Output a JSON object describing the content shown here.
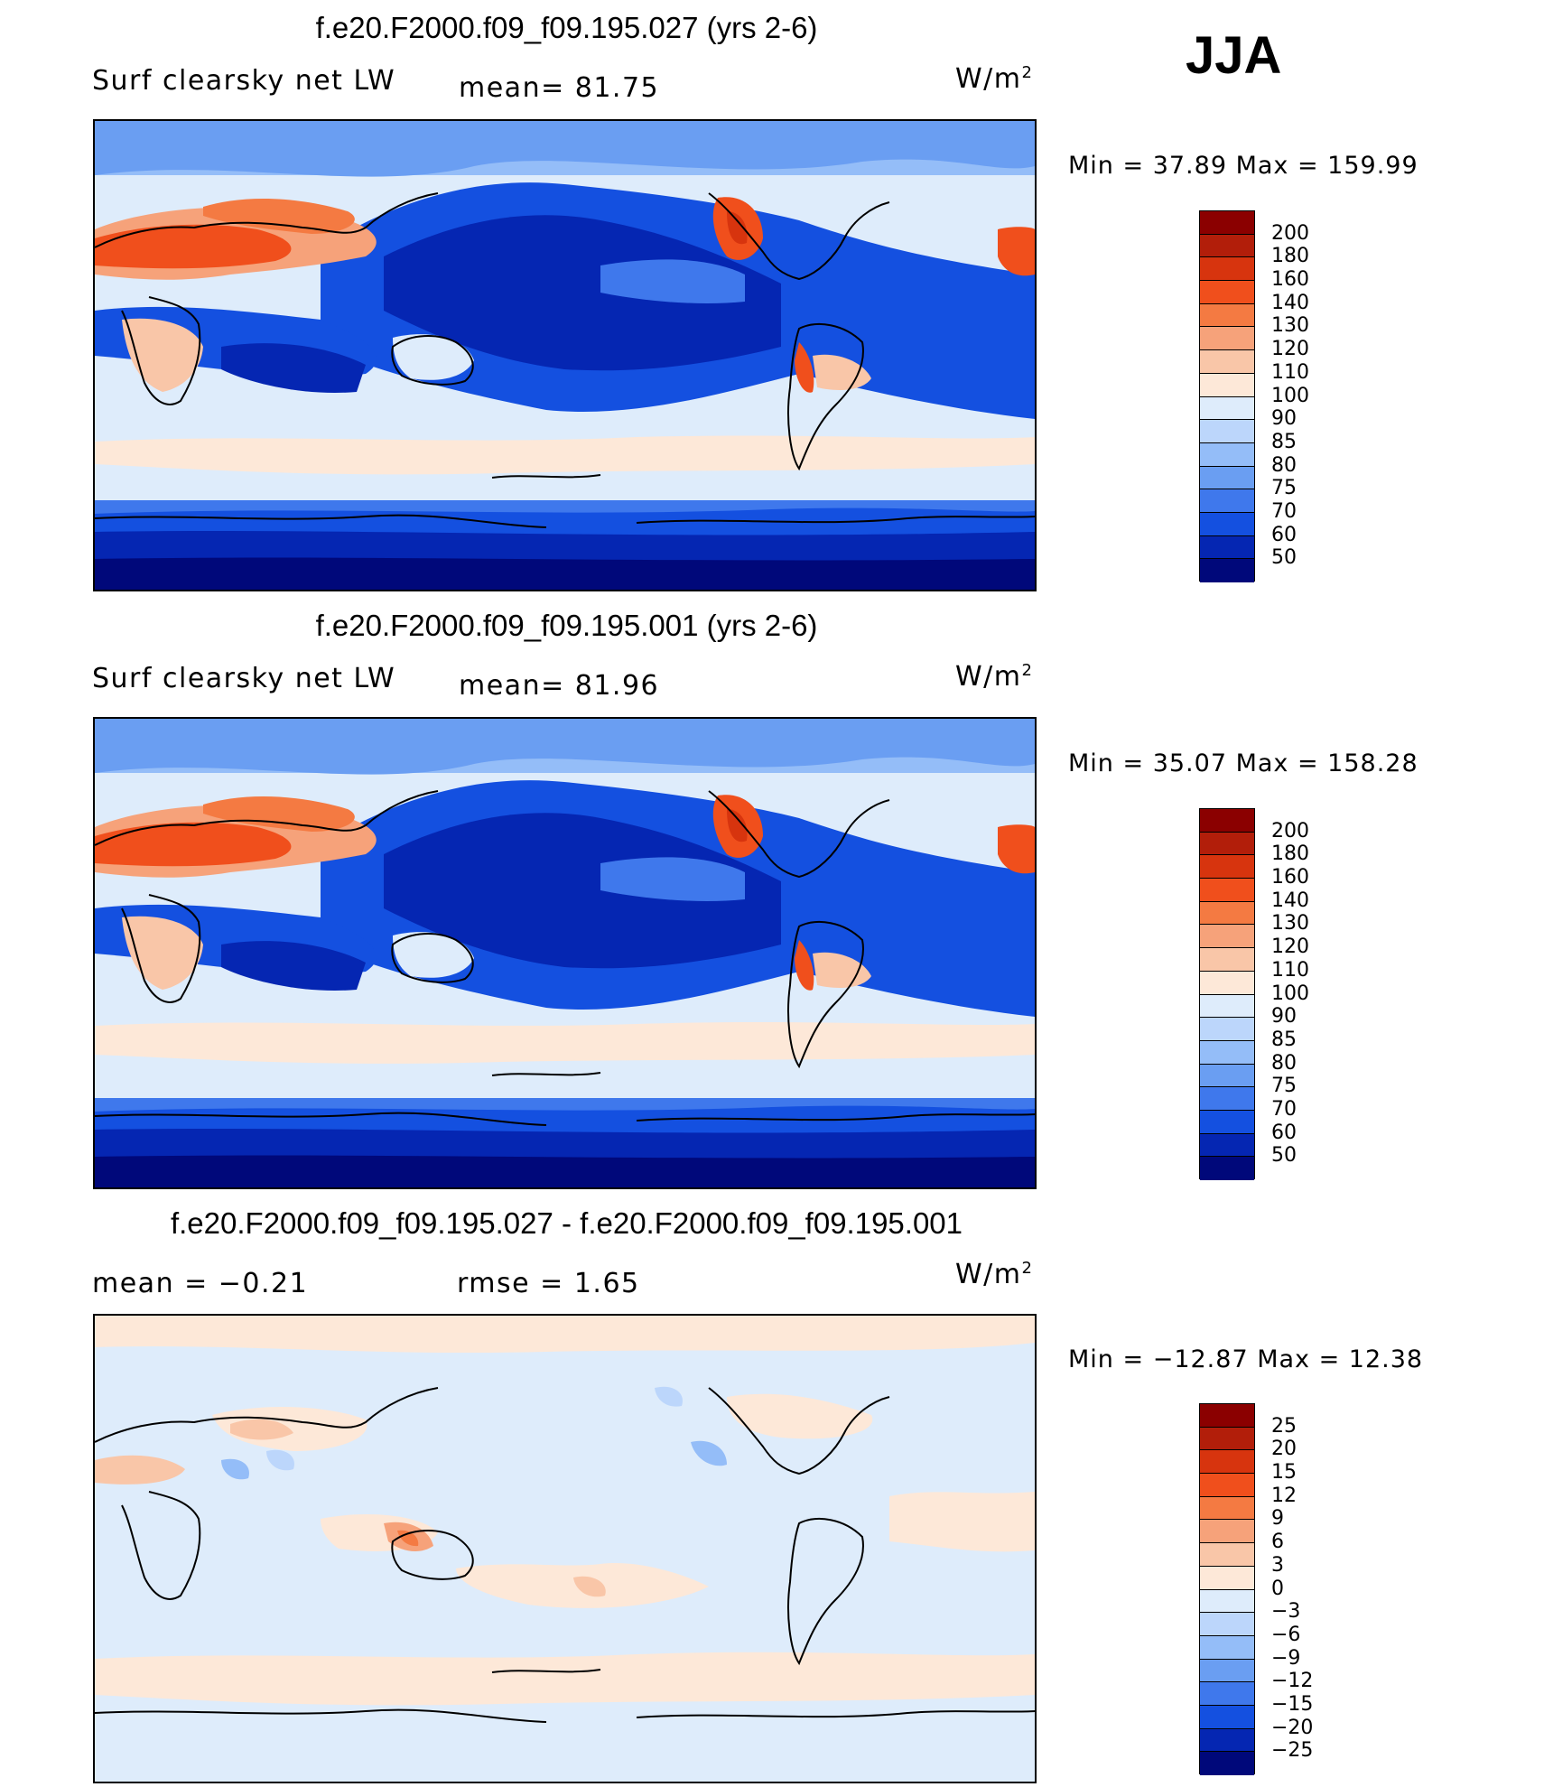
{
  "season": "JJA",
  "panels": [
    {
      "title": "f.e20.F2000.f09_f09.195.027 (yrs 2-6)",
      "left_text": "Surf  clearsky  net  LW",
      "center_text": "mean=   81.75",
      "units": "W/m",
      "units_sup": "2",
      "minmax": "Min  =    37.89  Max  =  159.99",
      "cbar_labels": [
        "200",
        "180",
        "160",
        "140",
        "130",
        "120",
        "110",
        "100",
        "90",
        "85",
        "80",
        "75",
        "70",
        "60",
        "50"
      ]
    },
    {
      "title": "f.e20.F2000.f09_f09.195.001 (yrs 2-6)",
      "left_text": "Surf  clearsky  net  LW",
      "center_text": "mean=   81.96",
      "units": "W/m",
      "units_sup": "2",
      "minmax": "Min  =    35.07  Max  =  158.28",
      "cbar_labels": [
        "200",
        "180",
        "160",
        "140",
        "130",
        "120",
        "110",
        "100",
        "90",
        "85",
        "80",
        "75",
        "70",
        "60",
        "50"
      ]
    },
    {
      "title": "f.e20.F2000.f09_f09.195.027 - f.e20.F2000.f09_f09.195.001",
      "left_text": "mean  =    −0.21",
      "center_text": "rmse  =     1.65",
      "units": "W/m",
      "units_sup": "2",
      "minmax": "Min  = −12.87  Max  =   12.38",
      "cbar_labels": [
        "25",
        "20",
        "15",
        "12",
        "9",
        "6",
        "3",
        "0",
        "−3",
        "−6",
        "−9",
        "−12",
        "−15",
        "−20",
        "−25"
      ]
    }
  ],
  "colors": {
    "abs_scale": [
      "#8b0000",
      "#b21e0a",
      "#d7340e",
      "#f04f1c",
      "#f47a42",
      "#f6a27a",
      "#f9c6a8",
      "#fde8d8",
      "#deecfb",
      "#bcd6fb",
      "#94bdf8",
      "#6a9ef2",
      "#3f78ec",
      "#1450e0",
      "#0526b2",
      "#00087a"
    ],
    "diff_scale": [
      "#8b0000",
      "#b21e0a",
      "#d7340e",
      "#f04f1c",
      "#f47a42",
      "#f6a27a",
      "#f9c6a8",
      "#fde8d8",
      "#deecfb",
      "#bcd6fb",
      "#94bdf8",
      "#6a9ef2",
      "#3f78ec",
      "#1450e0",
      "#0526b2",
      "#00087a"
    ]
  },
  "chart_data": [
    {
      "type": "heatmap",
      "title": "f.e20.F2000.f09_f09.195.027 (yrs 2-6)",
      "variable": "Surf clearsky net LW",
      "units": "W/m2",
      "mean": 81.75,
      "min": 37.89,
      "max": 159.99,
      "levels": [
        50,
        60,
        70,
        75,
        80,
        85,
        90,
        100,
        110,
        120,
        130,
        140,
        160,
        180,
        200
      ]
    },
    {
      "type": "heatmap",
      "title": "f.e20.F2000.f09_f09.195.001 (yrs 2-6)",
      "variable": "Surf clearsky net LW",
      "units": "W/m2",
      "mean": 81.96,
      "min": 35.07,
      "max": 158.28,
      "levels": [
        50,
        60,
        70,
        75,
        80,
        85,
        90,
        100,
        110,
        120,
        130,
        140,
        160,
        180,
        200
      ]
    },
    {
      "type": "heatmap",
      "title": "f.e20.F2000.f09_f09.195.027 - f.e20.F2000.f09_f09.195.001",
      "units": "W/m2",
      "mean": -0.21,
      "rmse": 1.65,
      "min": -12.87,
      "max": 12.38,
      "levels": [
        -25,
        -20,
        -15,
        -12,
        -9,
        -6,
        -3,
        0,
        3,
        6,
        9,
        12,
        15,
        20,
        25
      ]
    }
  ]
}
